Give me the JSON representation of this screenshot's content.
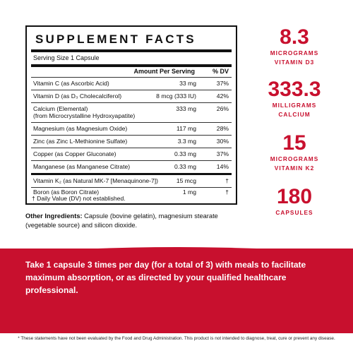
{
  "facts": {
    "title": "SUPPLEMENT FACTS",
    "serving": "Serving Size 1 Capsule",
    "col_amount": "Amount Per Serving",
    "col_dv": "% DV",
    "rows": [
      {
        "label": "Vitamin C (as Ascorbic Acid)",
        "amount": "33 mg",
        "dv": "37%"
      },
      {
        "label": "Vitamin D (as D₃ Cholecalciferol)",
        "amount": "8 mcg (333 IU)",
        "dv": "42%"
      },
      {
        "label": "Calcium (Elemental)",
        "sub": "(from Microcrystalline Hydroxyapatite)",
        "amount": "333 mg",
        "dv": "26%"
      },
      {
        "label": "Magnesium (as Magnesium Oxide)",
        "amount": "117 mg",
        "dv": "28%"
      },
      {
        "label": "Zinc (as Zinc L-Methionine Sulfate)",
        "amount": "3.3 mg",
        "dv": "30%"
      },
      {
        "label": "Copper (as Copper Gluconate)",
        "amount": "0.33 mg",
        "dv": "37%"
      },
      {
        "label": "Manganese (as Manganese Citrate)",
        "amount": "0.33 mg",
        "dv": "14%"
      },
      {
        "label": "Vitamin K₂ (as Natural MK-7 [Menaquinone-7])",
        "amount": "15 mcg",
        "dv": "†"
      },
      {
        "label": "Boron (as Boron Citrate)",
        "amount": "1 mg",
        "dv": "†"
      }
    ],
    "footnote": "† Daily Value (DV) not established."
  },
  "other": {
    "label": "Other Ingredients:",
    "text": " Capsule (bovine gelatin), magnesium stearate (vegetable source) and silicon dioxide."
  },
  "stats": [
    {
      "num": "8.3",
      "line1": "MICROGRAMS",
      "line2": "VITAMIN D3"
    },
    {
      "num": "333.3",
      "line1": "MILLIGRAMS",
      "line2": "CALCIUM"
    },
    {
      "num": "15",
      "line1": "MICROGRAMS",
      "line2": "VITAMIN K2"
    },
    {
      "num": "180",
      "line1": "CAPSULES",
      "line2": ""
    }
  ],
  "banner": "Take 1 capsule 3 times per day (for a total of 3) with meals to facilitate maximum absorption, or as directed by your qualified healthcare professional.",
  "disclaimer": "* These statements have not been evaluated by the Food and Drug Administration. This product is not intended to diagnose, treat, cure or prevent any disease.",
  "colors": {
    "accent": "#c8102e"
  }
}
